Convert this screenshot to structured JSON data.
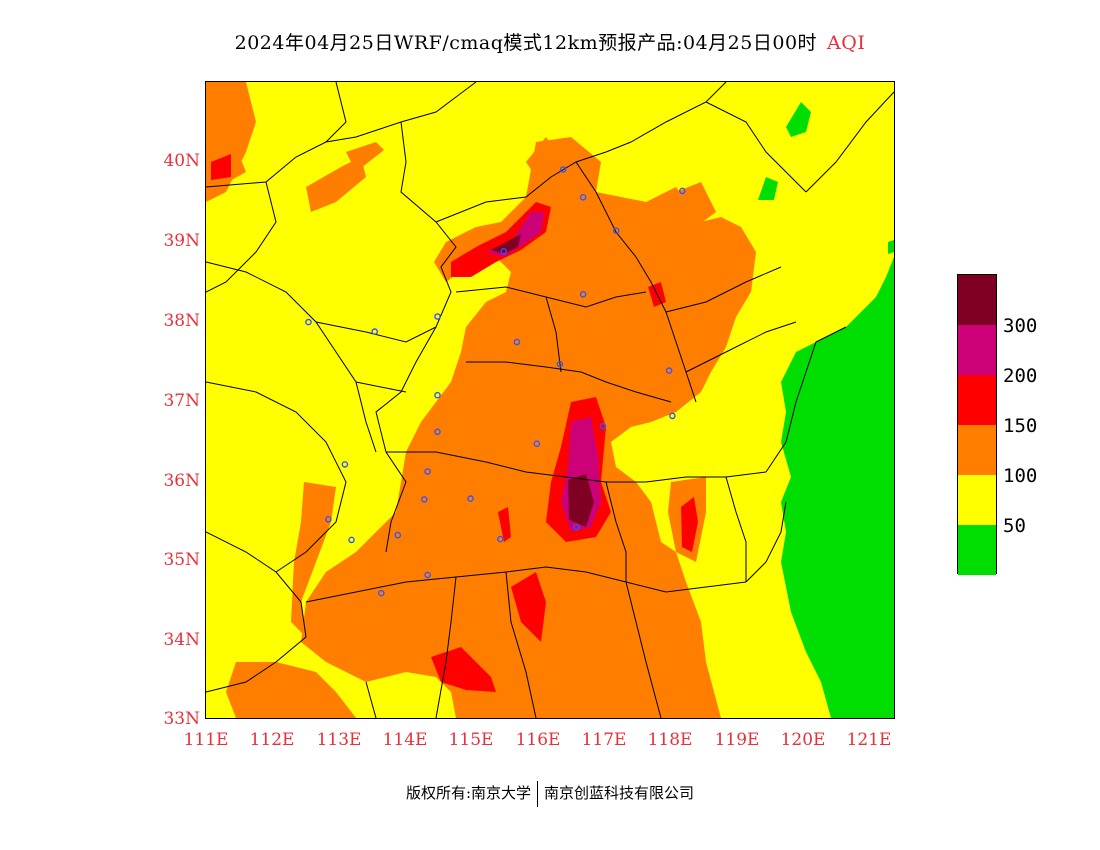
{
  "title": {
    "main": "2024年04月25日WRF/cmaq模式12km预报产品:04月25日00时",
    "product": "AQI"
  },
  "map": {
    "lat_labels": [
      "40N",
      "39N",
      "38N",
      "37N",
      "36N",
      "35N",
      "34N",
      "33N"
    ],
    "lon_labels": [
      "111E",
      "112E",
      "113E",
      "114E",
      "115E",
      "116E",
      "117E",
      "118E",
      "119E",
      "120E",
      "121E"
    ],
    "lat_range": [
      33,
      41
    ],
    "lon_range": [
      111,
      121.4
    ],
    "colors": {
      "good": "#00dd00",
      "moderate": "#ffff00",
      "sensitive": "#ff7e00",
      "unhealthy": "#ff0000",
      "very_unhealthy": "#cc0077",
      "hazardous": "#7e0023"
    },
    "station_markers": [
      {
        "lon": 116.4,
        "lat": 39.9
      },
      {
        "lon": 116.7,
        "lat": 39.55
      },
      {
        "lon": 117.2,
        "lat": 39.13
      },
      {
        "lon": 118.2,
        "lat": 39.63
      },
      {
        "lon": 115.5,
        "lat": 38.87
      },
      {
        "lon": 116.7,
        "lat": 38.33
      },
      {
        "lon": 114.5,
        "lat": 38.05
      },
      {
        "lon": 112.55,
        "lat": 37.98
      },
      {
        "lon": 113.55,
        "lat": 37.86
      },
      {
        "lon": 115.7,
        "lat": 37.73
      },
      {
        "lon": 116.35,
        "lat": 37.45
      },
      {
        "lon": 118.0,
        "lat": 37.37
      },
      {
        "lon": 114.5,
        "lat": 37.06
      },
      {
        "lon": 114.5,
        "lat": 36.6
      },
      {
        "lon": 116.0,
        "lat": 36.45
      },
      {
        "lon": 117.0,
        "lat": 36.67
      },
      {
        "lon": 118.05,
        "lat": 36.8
      },
      {
        "lon": 114.35,
        "lat": 36.1
      },
      {
        "lon": 113.1,
        "lat": 36.19
      },
      {
        "lon": 114.3,
        "lat": 35.75
      },
      {
        "lon": 115.0,
        "lat": 35.76
      },
      {
        "lon": 112.85,
        "lat": 35.5
      },
      {
        "lon": 113.2,
        "lat": 35.24
      },
      {
        "lon": 113.9,
        "lat": 35.3
      },
      {
        "lon": 115.45,
        "lat": 35.25
      },
      {
        "lon": 116.6,
        "lat": 35.4
      },
      {
        "lon": 114.35,
        "lat": 34.8
      },
      {
        "lon": 113.65,
        "lat": 34.57
      }
    ]
  },
  "legend": {
    "swatches": [
      "#7e0023",
      "#cc0077",
      "#ff0000",
      "#ff7e00",
      "#ffff00",
      "#00dd00"
    ],
    "labels": [
      "300",
      "200",
      "150",
      "100",
      "50"
    ]
  },
  "footer": {
    "left": "版权所有:南京大学",
    "right": "南京创蓝科技有限公司"
  }
}
